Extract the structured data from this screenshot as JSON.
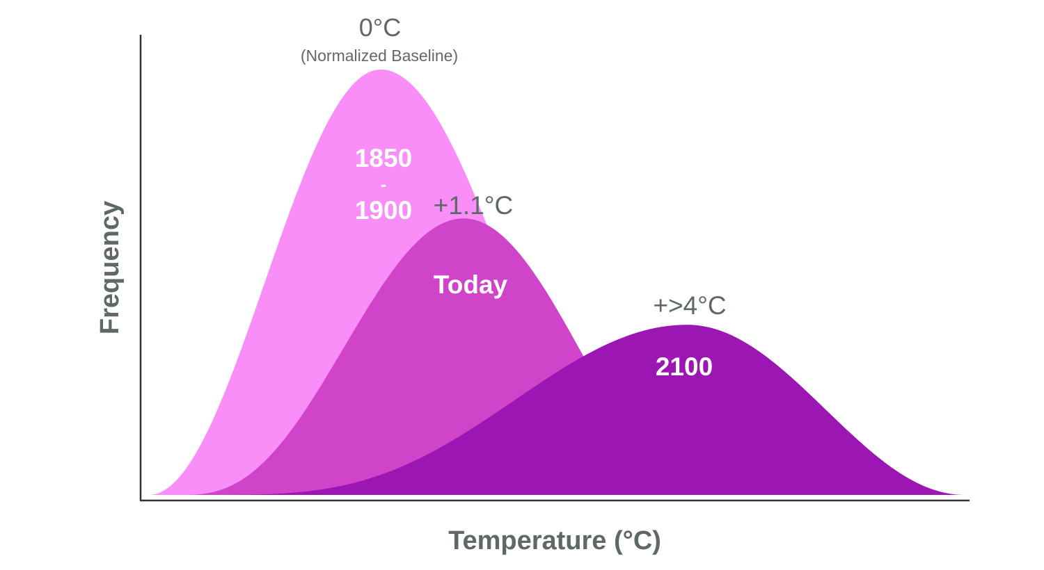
{
  "chart_data": {
    "type": "area",
    "title": "",
    "xlabel": "Temperature (°C)",
    "ylabel": "Frequency",
    "xlim": [
      0,
      100
    ],
    "ylim": [
      0,
      100
    ],
    "grid": false,
    "series": [
      {
        "name": "1850 - 1900",
        "label_lines": [
          "1850",
          "-",
          "1900"
        ],
        "annotation": "0°C",
        "subannotation": "(Normalized Baseline)",
        "start": 1,
        "peak_x": 29,
        "peak_y": 100,
        "end": 60,
        "tail": 1.0,
        "color": "#f98ef9"
      },
      {
        "name": "Today",
        "label_lines": [
          "Today"
        ],
        "annotation": "+1.1°C",
        "subannotation": "",
        "start": 5,
        "peak_x": 39,
        "peak_y": 65,
        "end": 68,
        "tail": 1.3,
        "color": "#cf44c9"
      },
      {
        "name": "2100",
        "label_lines": [
          "2100"
        ],
        "annotation": "+>4°C",
        "subannotation": "",
        "start": 7,
        "peak_x": 66,
        "peak_y": 40,
        "end": 99.5,
        "tail": 1.8,
        "color": "#9c16b4"
      }
    ]
  }
}
